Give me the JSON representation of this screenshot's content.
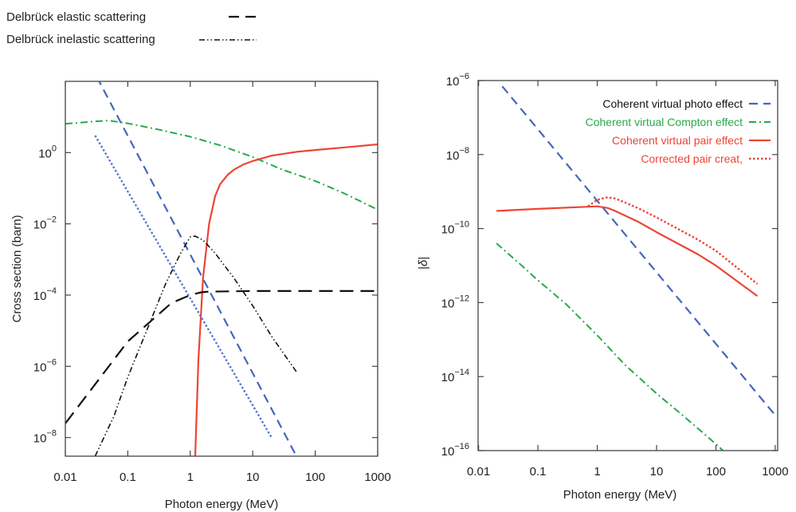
{
  "colors": {
    "frame": "#444444",
    "text": "#222222",
    "photo_line": "#4466bb",
    "photo_line_2": "#5577cc",
    "compton": "#2aa84a",
    "pair": "#ee4433",
    "delbruck": "#111111"
  },
  "top_legend": {
    "entries": [
      {
        "label": "Delbrück elastic scattering",
        "style": "long-dash",
        "color": "#111111"
      },
      {
        "label": "Delbrück inelastic scattering",
        "style": "dash-dot-dot",
        "color": "#111111"
      }
    ]
  },
  "chart_data": [
    {
      "type": "line",
      "xlabel": "Photon energy (MeV)",
      "ylabel": "Cross section (barn)",
      "xscale": "log",
      "yscale": "log",
      "xlim": [
        0.01,
        1000
      ],
      "ylim": [
        3e-09,
        100.0
      ],
      "xticks": [
        0.01,
        0.1,
        1,
        10,
        100,
        1000
      ],
      "xtick_labels": [
        "0.01",
        "0.1",
        "1",
        "10",
        "100",
        "1000"
      ],
      "yticks": [
        1e-08,
        1e-06,
        0.0001,
        0.01,
        1
      ],
      "ytick_labels": [
        {
          "base": "10",
          "exp": "−8"
        },
        {
          "base": "10",
          "exp": "−6"
        },
        {
          "base": "10",
          "exp": "−4"
        },
        {
          "base": "10",
          "exp": "−2"
        },
        {
          "base": "10",
          "exp": "0"
        }
      ],
      "grid": false,
      "series": [
        {
          "color": "#2aa84a",
          "style": "dash-dot",
          "x": [
            0.01,
            0.03,
            0.05,
            0.1,
            0.3,
            1,
            3,
            10,
            30,
            100,
            300,
            1000
          ],
          "y": [
            6.4,
            7.5,
            7.9,
            6.6,
            4.5,
            2.8,
            1.6,
            0.75,
            0.33,
            0.16,
            0.07,
            0.025
          ]
        },
        {
          "color": "#ee4433",
          "style": "solid",
          "x": [
            1.2,
            1.35,
            1.6,
            2,
            2.5,
            3,
            4,
            5,
            7,
            10,
            20,
            50,
            100,
            300,
            1000
          ],
          "y": [
            3e-09,
            1.5e-06,
            0.0003,
            0.01,
            0.06,
            0.13,
            0.24,
            0.33,
            0.46,
            0.58,
            0.82,
            1.05,
            1.18,
            1.4,
            1.7
          ]
        },
        {
          "color": "#4466bb",
          "style": "dashed",
          "x": [
            0.025,
            50
          ],
          "y": [
            300,
            3e-09
          ]
        },
        {
          "color": "#5577cc",
          "style": "dotted",
          "x": [
            0.03,
            20
          ],
          "y": [
            3,
            1e-08
          ]
        },
        {
          "color": "#111111",
          "style": "long-dash",
          "x": [
            0.01,
            0.1,
            0.5,
            1,
            1.5,
            2,
            5,
            10,
            100,
            1000
          ],
          "y": [
            2.5e-08,
            5e-06,
            6e-05,
            0.0001,
            0.00012,
            0.000125,
            0.000128,
            0.00013,
            0.00013,
            0.00013
          ]
        },
        {
          "color": "#111111",
          "style": "dash-dot-dot",
          "x": [
            0.03,
            0.06,
            0.1,
            0.2,
            0.4,
            0.7,
            1,
            1.2,
            1.6,
            2.5,
            5,
            10,
            20,
            50
          ],
          "y": [
            3e-09,
            4e-08,
            5e-07,
            1e-05,
            0.0002,
            0.0015,
            0.0043,
            0.0045,
            0.0035,
            0.0015,
            0.0003,
            5e-05,
            7e-06,
            7e-07
          ]
        }
      ]
    },
    {
      "type": "line",
      "xlabel": "Photon energy (MeV)",
      "ylabel": "|δ|",
      "xscale": "log",
      "yscale": "log",
      "xlim": [
        0.0098,
        1100
      ],
      "ylim": [
        1e-16,
        1e-06
      ],
      "xticks": [
        0.01,
        0.1,
        1,
        10,
        100,
        1000
      ],
      "xtick_labels": [
        "0.01",
        "0.1",
        "1",
        "10",
        "100",
        "1000"
      ],
      "yticks": [
        1e-16,
        1e-14,
        1e-12,
        1e-10,
        1e-08,
        1e-06
      ],
      "ytick_labels": [
        {
          "base": "10",
          "exp": "−16"
        },
        {
          "base": "10",
          "exp": "−14"
        },
        {
          "base": "10",
          "exp": "−12"
        },
        {
          "base": "10",
          "exp": "−10"
        },
        {
          "base": "10",
          "exp": "−8"
        },
        {
          "base": "10",
          "exp": "−6"
        }
      ],
      "grid": false,
      "legend_position": "top-right",
      "series": [
        {
          "name": "Coherent virtual photo effect",
          "color": "#4466bb",
          "style": "dashed",
          "x": [
            0.025,
            1000
          ],
          "y": [
            7e-07,
            9e-16
          ]
        },
        {
          "name": "Coherent virtual Compton effect",
          "color": "#2aa84a",
          "style": "dash-dot",
          "x": [
            0.02,
            0.05,
            0.1,
            0.3,
            1,
            3,
            10,
            30,
            100,
            300
          ],
          "y": [
            4e-11,
            1.1e-11,
            4e-12,
            9e-13,
            1.3e-13,
            2e-14,
            3.5e-15,
            8e-16,
            1.5e-16,
            3e-17
          ]
        },
        {
          "name": "Coherent virtual pair effect",
          "color": "#ee4433",
          "style": "solid",
          "x": [
            0.02,
            0.1,
            0.5,
            1,
            1.5,
            2,
            5,
            10,
            50,
            100,
            500
          ],
          "y": [
            3e-10,
            3.4e-10,
            3.8e-10,
            4e-10,
            3.6e-10,
            3e-10,
            1.5e-10,
            8e-11,
            2e-11,
            1e-11,
            1.5e-12
          ]
        },
        {
          "name": "Corrected pair creat,",
          "color": "#ee4433",
          "style": "dotted",
          "x": [
            0.7,
            1,
            1.5,
            2,
            3,
            5,
            10,
            50,
            100,
            500
          ],
          "y": [
            4e-10,
            6e-10,
            7e-10,
            6.5e-10,
            5e-10,
            3.5e-10,
            2e-10,
            5e-11,
            2.5e-11,
            3.2e-12
          ]
        }
      ]
    }
  ]
}
